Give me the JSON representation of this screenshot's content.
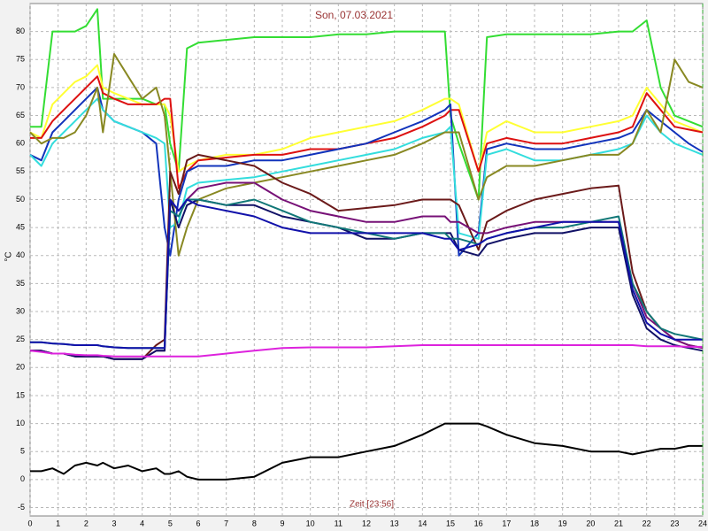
{
  "chart_data": {
    "type": "line",
    "title": "Son, 07.03.2021",
    "x_label": "Zeit [23:56]",
    "y_label": "°C",
    "xlim": [
      0,
      24
    ],
    "xticks": [
      0,
      1,
      2,
      3,
      4,
      5,
      6,
      7,
      8,
      9,
      10,
      11,
      12,
      13,
      14,
      15,
      16,
      17,
      18,
      19,
      20,
      21,
      22,
      23,
      24
    ],
    "ylim": [
      -6.5,
      85
    ],
    "yticks": [
      -5,
      0,
      5,
      10,
      15,
      20,
      25,
      30,
      35,
      40,
      45,
      50,
      55,
      60,
      65,
      70,
      75,
      80
    ],
    "grid": true,
    "x": [
      0,
      0.4,
      0.8,
      1.2,
      1.6,
      2,
      2.4,
      2.6,
      3,
      3.5,
      4,
      4.5,
      4.8,
      5,
      5.3,
      5.6,
      6,
      7,
      8,
      9,
      10,
      11,
      12,
      13,
      14,
      14.8,
      15,
      15.3,
      16,
      16.3,
      17,
      18,
      19,
      20,
      21,
      21.5,
      22,
      22.5,
      23,
      23.5,
      24
    ],
    "series": [
      {
        "color": "#33dd33",
        "values": [
          63,
          63,
          80,
          80,
          80,
          81,
          84,
          68,
          68,
          68,
          68,
          67,
          67,
          60,
          55,
          77,
          78,
          78.5,
          79,
          79,
          79,
          79.5,
          79.5,
          80,
          80,
          80,
          65,
          60,
          50,
          79,
          79.5,
          79.5,
          79.5,
          79.5,
          80,
          80,
          82,
          70,
          65,
          64,
          63
        ]
      },
      {
        "color": "#ffff33",
        "values": [
          62,
          61,
          67,
          69,
          71,
          72,
          74,
          70,
          69,
          68,
          67,
          67,
          67,
          65,
          55,
          56,
          57,
          58,
          58,
          59,
          61,
          62,
          63,
          64,
          66,
          68,
          68,
          67,
          55,
          62,
          64,
          62,
          62,
          63,
          64,
          65,
          70,
          67,
          64,
          63,
          62
        ]
      },
      {
        "color": "#dd1111",
        "values": [
          61,
          61,
          64,
          66,
          68,
          70,
          72,
          69,
          68,
          67,
          67,
          67,
          68,
          68,
          52,
          55,
          57,
          57.5,
          58,
          58,
          59,
          59,
          60,
          61,
          63,
          65,
          66,
          66,
          55,
          60,
          61,
          60,
          60,
          61,
          62,
          63,
          69,
          66,
          63,
          62.5,
          62
        ]
      },
      {
        "color": "#1133bb",
        "values": [
          58,
          57,
          62,
          64,
          66,
          68,
          70,
          66,
          64,
          63,
          62,
          60,
          45,
          40,
          50,
          55,
          56,
          56,
          57,
          57,
          58,
          59,
          60,
          62,
          64,
          66,
          67,
          40,
          44,
          59,
          60,
          59,
          59,
          60,
          61,
          62,
          66,
          64,
          62,
          60,
          58.5
        ]
      },
      {
        "color": "#33dddd",
        "values": [
          58,
          56,
          60,
          62,
          64,
          66,
          68,
          66,
          64,
          63,
          62,
          61,
          60,
          45,
          46,
          52,
          53,
          53.5,
          54,
          55,
          56,
          57,
          58,
          59,
          61,
          62,
          63,
          44,
          43,
          58,
          59,
          57,
          57,
          58,
          59,
          60,
          65,
          62,
          60,
          59,
          58
        ]
      },
      {
        "color": "#888822",
        "values": [
          62,
          60,
          61,
          61,
          62,
          65,
          70,
          62,
          76,
          72,
          68,
          70,
          65,
          55,
          40,
          45,
          50,
          52,
          53,
          54,
          55,
          56,
          57,
          58,
          60,
          62,
          62,
          62,
          50,
          54,
          56,
          56,
          57,
          58,
          58,
          60,
          66,
          62,
          75,
          71,
          70
        ]
      },
      {
        "color": "#6b1a1a",
        "values": [
          23,
          23,
          22.5,
          22.5,
          22,
          22,
          22,
          22,
          21.5,
          21.5,
          21.5,
          24,
          25,
          55,
          51,
          57,
          58,
          57,
          56,
          53,
          51,
          48,
          48.5,
          49,
          50,
          50,
          50,
          49,
          41,
          46,
          48,
          50,
          51,
          52,
          52.5,
          37,
          30,
          27,
          25,
          24,
          23.5
        ]
      },
      {
        "color": "#771177",
        "values": [
          23,
          23,
          22.5,
          22.5,
          22,
          22,
          22,
          22,
          21.5,
          21.5,
          21.5,
          23,
          23,
          50,
          48,
          50,
          52,
          53,
          53,
          50,
          48,
          47,
          46,
          46,
          47,
          47,
          46,
          46,
          44,
          44,
          45,
          46,
          46,
          46,
          46,
          35,
          29,
          27,
          25,
          24,
          23.5
        ]
      },
      {
        "color": "#111166",
        "values": [
          23,
          23,
          22.5,
          22.5,
          22,
          22,
          22,
          22,
          21.5,
          21.5,
          21.5,
          23,
          23,
          50,
          45,
          49,
          50,
          49,
          49,
          47,
          46,
          45,
          43,
          43,
          44,
          44,
          44,
          41,
          40,
          42,
          43,
          44,
          44,
          45,
          45,
          33,
          27,
          25,
          24,
          23.5,
          23
        ]
      },
      {
        "color": "#117777",
        "values": [
          24.5,
          24.5,
          24.3,
          24.2,
          24,
          24,
          24,
          23.8,
          23.6,
          23.5,
          23.5,
          23.5,
          23.5,
          48,
          47,
          50,
          50,
          49,
          50,
          48,
          46,
          45,
          44,
          43,
          44,
          44,
          43,
          43,
          42,
          43,
          44,
          45,
          45,
          46,
          47,
          35,
          30,
          27,
          26,
          25.5,
          25
        ]
      },
      {
        "color": "#1111aa",
        "values": [
          24.5,
          24.5,
          24.3,
          24.2,
          24,
          24,
          24,
          23.8,
          23.6,
          23.5,
          23.5,
          23.5,
          23.5,
          50,
          48,
          50,
          49,
          48,
          47,
          45,
          44,
          44,
          44,
          44,
          44,
          43,
          43,
          41,
          42,
          43,
          44,
          45,
          46,
          46,
          46,
          34,
          28,
          26,
          25,
          25,
          25
        ]
      },
      {
        "color": "#dd22dd",
        "values": [
          23,
          22.8,
          22.5,
          22.5,
          22.3,
          22.2,
          22.2,
          22.1,
          22,
          22,
          22,
          22,
          22,
          22,
          22,
          22,
          22,
          22.5,
          23,
          23.5,
          23.6,
          23.6,
          23.6,
          23.8,
          24,
          24,
          24,
          24,
          24,
          24,
          24,
          24,
          24,
          24,
          24,
          24,
          23.8,
          23.8,
          23.8,
          23.7,
          23.7
        ]
      },
      {
        "color": "#000000",
        "values": [
          1.5,
          1.5,
          2,
          1,
          2.5,
          3,
          2.5,
          3,
          2,
          2.5,
          1.5,
          2,
          1,
          1,
          1.5,
          0.5,
          0,
          0,
          0.5,
          3,
          4,
          4,
          5,
          6,
          8,
          10,
          10,
          10,
          10,
          9.5,
          8,
          6.5,
          6,
          5,
          5,
          4.5,
          5,
          5.5,
          5.5,
          6,
          6
        ]
      }
    ]
  }
}
